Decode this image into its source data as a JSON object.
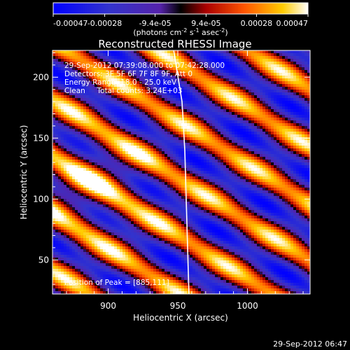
{
  "chart_data": {
    "type": "heatmap",
    "title": "Reconstructed RHESSI Image",
    "xlabel": "Heliocentric X (arcsec)",
    "ylabel": "Heliocentric Y (arcsec)",
    "xlim": [
      860,
      1045
    ],
    "ylim": [
      22,
      222
    ],
    "xticks": [
      900,
      950,
      1000
    ],
    "yticks": [
      50,
      100,
      150,
      200
    ],
    "colorbar": {
      "ticks": [
        "-0.00047",
        "-0.00028",
        "-9.4e-05",
        "9.4e-05",
        "0.00028",
        "0.00047"
      ],
      "values": [
        -0.00047,
        -0.00028,
        -9.4e-05,
        9.4e-05,
        0.00028,
        0.00047
      ],
      "unit_base": "(photons cm",
      "unit_exp1": "-2",
      "unit_mid": " s",
      "unit_exp2": "-1",
      "unit_end": " asec",
      "unit_exp3": "-2",
      "unit_close": ")"
    },
    "annotations": [
      "29-Sep-2012 07:39:08.000 to 07:42:28.000",
      "Detectors: 3F 5F 6F 7F 8F 9F, Att 0",
      "Energy Range: 18.0 - 25.0 keV",
      "Clean     Total counts: 3.24E+03",
      "Position of Peak = [885,111]"
    ],
    "limb": {
      "label": "",
      "points": [
        [
          947,
          222
        ],
        [
          953,
          180
        ],
        [
          955,
          140
        ],
        [
          956,
          100
        ],
        [
          957,
          60
        ],
        [
          958,
          22
        ]
      ]
    },
    "peak": [
      885,
      111
    ],
    "footer": "29-Sep-2012 06:47"
  }
}
